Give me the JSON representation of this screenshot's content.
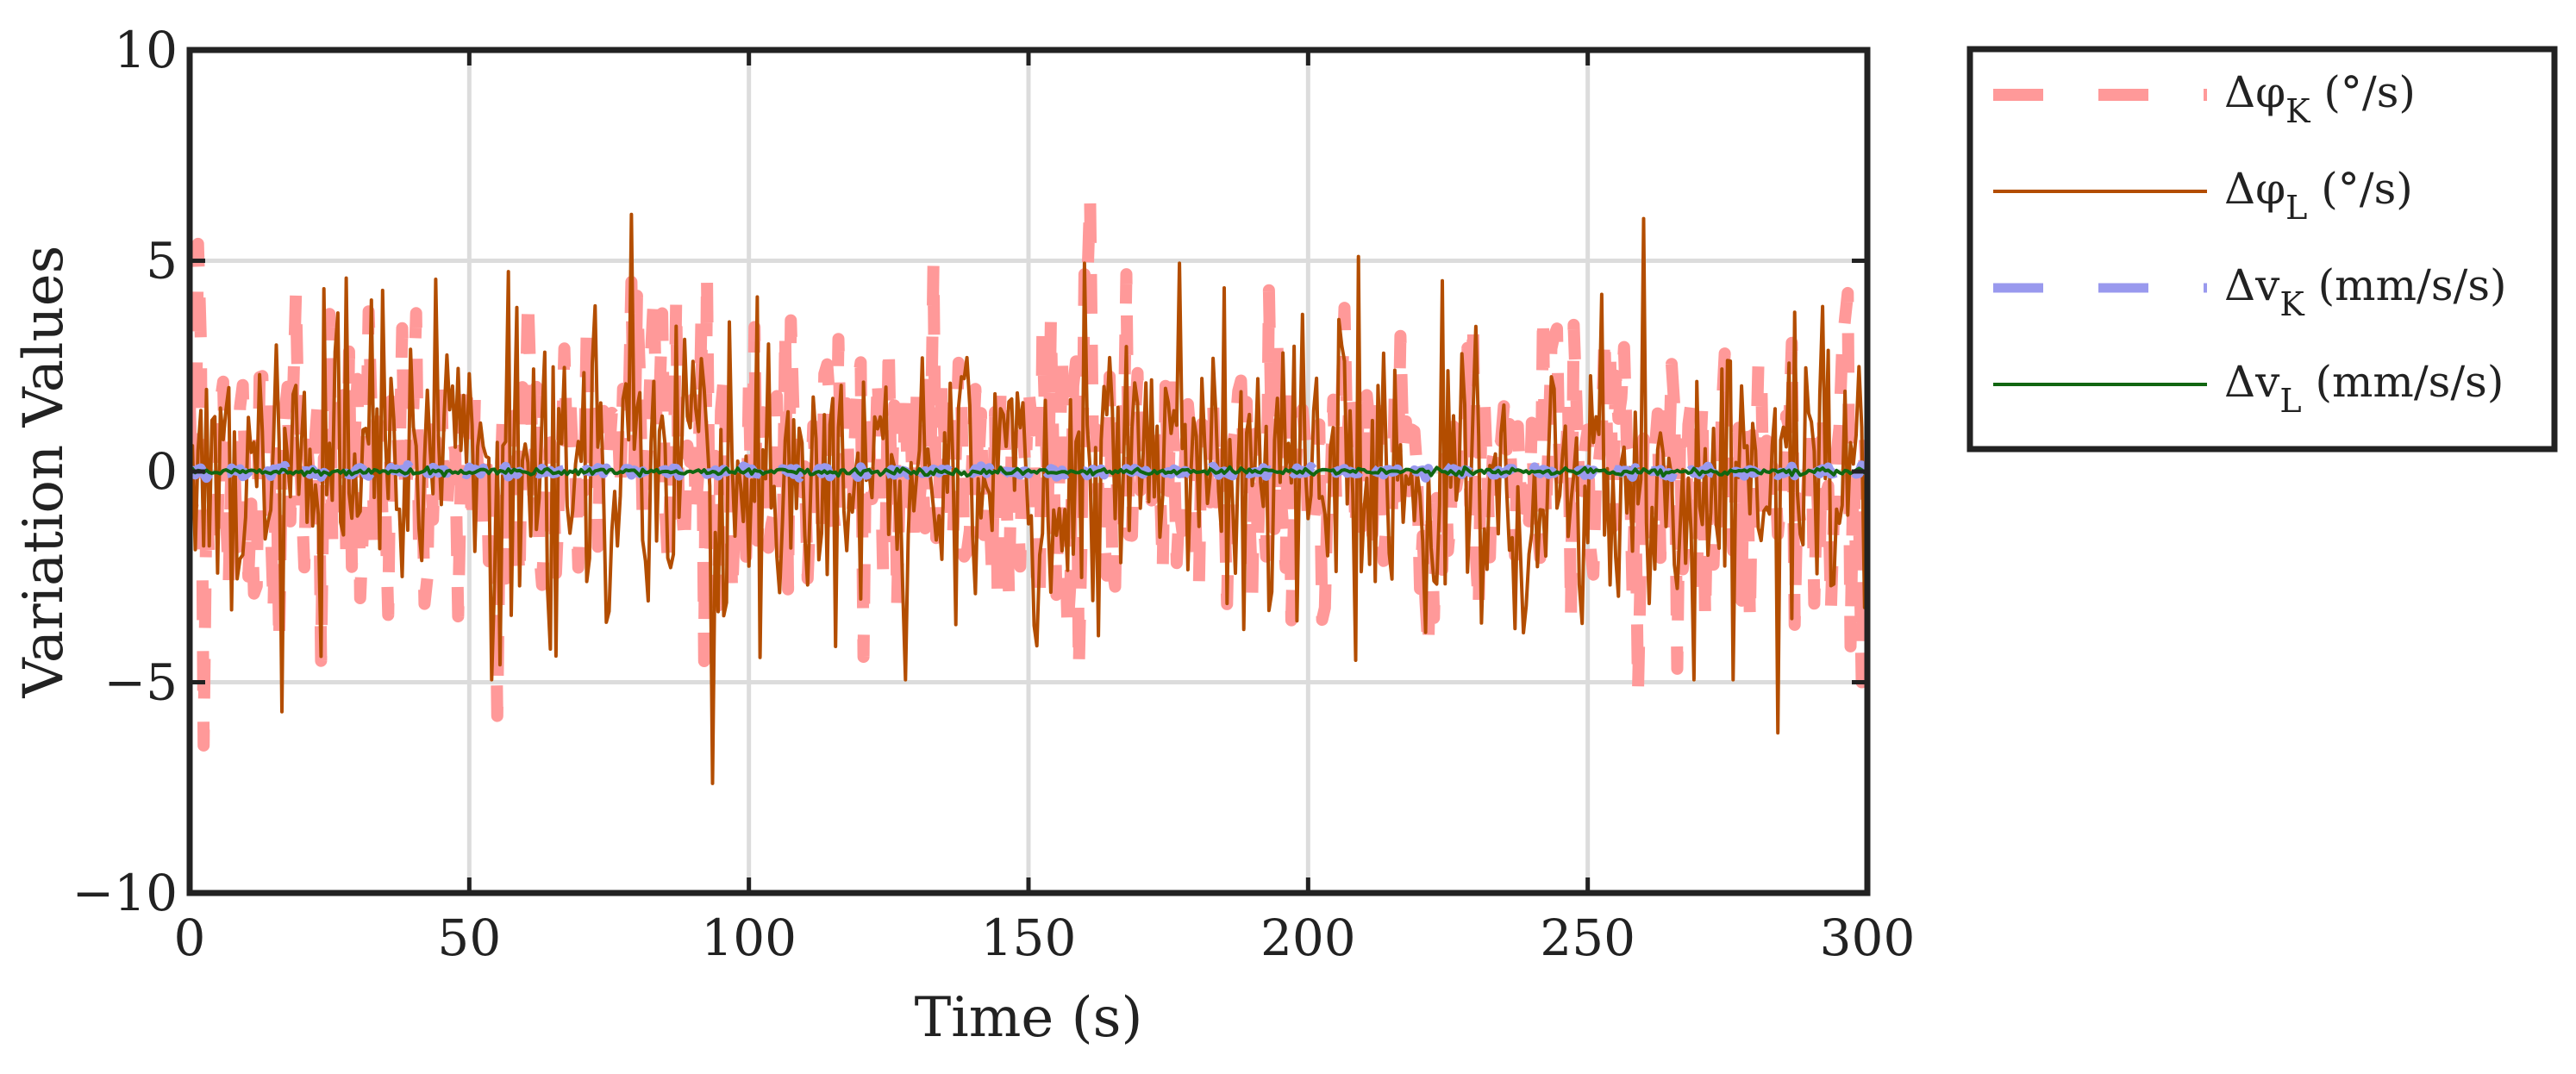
{
  "chart_data": {
    "type": "line",
    "title": "",
    "xlabel": "Time (s)",
    "ylabel": "Variation Values",
    "xlim": [
      0,
      300
    ],
    "ylim": [
      -10,
      10
    ],
    "xticks": [
      0,
      50,
      100,
      150,
      200,
      250,
      300
    ],
    "xtick_labels": [
      "0",
      "50",
      "100",
      "150",
      "200",
      "250",
      "300"
    ],
    "yticks": [
      -10,
      -5,
      0,
      5,
      10
    ],
    "ytick_labels": [
      "−10",
      "−5",
      "0",
      "5",
      "10"
    ],
    "grid": true,
    "legend_position": "outside-right-top",
    "sample_interval_s": 0.5,
    "series": [
      {
        "name": "Δφ_K (°/s)",
        "legend_main": "Δφ",
        "legend_sub": "K",
        "legend_unit": " (°/s)",
        "color": "#ff9999",
        "style": "dashed",
        "amplitude_std": 1.8,
        "peaks": [
          [
            1.5,
            5.4
          ],
          [
            2.5,
            -6.5
          ],
          [
            19,
            4.2
          ],
          [
            32,
            3.8
          ],
          [
            55,
            -5.8
          ],
          [
            79,
            4.5
          ],
          [
            92,
            -4.5
          ],
          [
            133,
            4.9
          ],
          [
            161,
            6.5
          ],
          [
            193,
            4.3
          ],
          [
            259,
            6.2
          ],
          [
            259,
            -5.2
          ],
          [
            299,
            -5.0
          ]
        ],
        "values_note": ""
      },
      {
        "name": "Δφ_L (°/s)",
        "legend_main": "Δφ",
        "legend_sub": "L",
        "legend_unit": " (°/s)",
        "color": "#b34d00",
        "style": "solid",
        "amplitude_std": 1.9,
        "peaks": [
          [
            16.5,
            6.1
          ],
          [
            16.5,
            -5.7
          ],
          [
            79,
            6.1
          ],
          [
            93.5,
            -7.4
          ],
          [
            209,
            5.1
          ],
          [
            260,
            6.0
          ],
          [
            284,
            -6.2
          ]
        ]
      },
      {
        "name": "Δv_K (mm/s/s)",
        "legend_main": "Δv",
        "legend_sub": "K",
        "legend_unit": " (mm/s/s)",
        "color": "#9999ee",
        "style": "dashed",
        "amplitude_std": 0.06,
        "peaks": []
      },
      {
        "name": "Δv_L (mm/s/s)",
        "legend_main": "Δv",
        "legend_sub": "L",
        "legend_unit": " (mm/s/s)",
        "color": "#116611",
        "style": "solid",
        "amplitude_std": 0.04,
        "peaks": []
      }
    ]
  }
}
